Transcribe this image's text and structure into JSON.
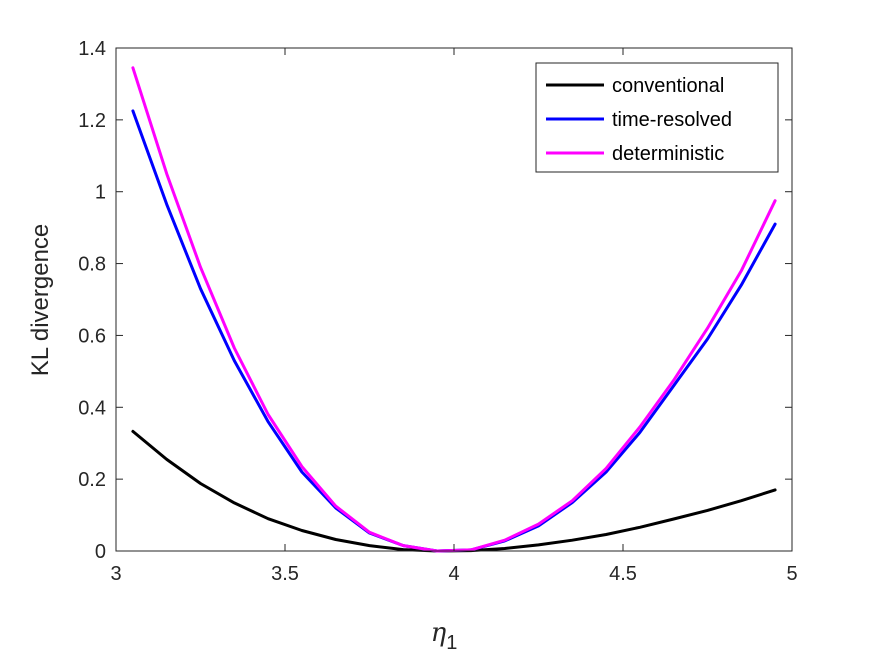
{
  "chart_data": {
    "type": "line",
    "title": "",
    "xlabel": {
      "main": "η",
      "subscript": "1"
    },
    "ylabel": "KL divergence",
    "xlim": [
      3,
      5
    ],
    "ylim": [
      0,
      1.4
    ],
    "xticks": [
      "3",
      "3.5",
      "4",
      "4.5",
      "5"
    ],
    "yticks": [
      "0",
      "0.2",
      "0.4",
      "0.6",
      "0.8",
      "1",
      "1.2",
      "1.4"
    ],
    "grid": false,
    "legend_position": "top-right",
    "series": [
      {
        "name": "conventional",
        "color": "#000000",
        "x": [
          3.05,
          3.15,
          3.25,
          3.35,
          3.45,
          3.55,
          3.65,
          3.75,
          3.85,
          3.95,
          4.05,
          4.15,
          4.25,
          4.35,
          4.45,
          4.55,
          4.65,
          4.75,
          4.85,
          4.95
        ],
        "y": [
          0.333,
          0.255,
          0.188,
          0.134,
          0.09,
          0.057,
          0.032,
          0.015,
          0.004,
          0.0,
          0.001,
          0.007,
          0.017,
          0.03,
          0.046,
          0.066,
          0.089,
          0.113,
          0.14,
          0.17
        ]
      },
      {
        "name": "time-resolved",
        "color": "#0000ff",
        "x": [
          3.05,
          3.15,
          3.25,
          3.35,
          3.45,
          3.55,
          3.65,
          3.75,
          3.85,
          3.95,
          4.05,
          4.15,
          4.25,
          4.35,
          4.45,
          4.55,
          4.65,
          4.75,
          4.85,
          4.95
        ],
        "y": [
          1.225,
          0.965,
          0.73,
          0.53,
          0.36,
          0.22,
          0.12,
          0.05,
          0.015,
          0.0,
          0.003,
          0.028,
          0.07,
          0.135,
          0.22,
          0.33,
          0.46,
          0.59,
          0.74,
          0.91
        ]
      },
      {
        "name": "deterministic",
        "color": "#ff00ff",
        "x": [
          3.05,
          3.15,
          3.25,
          3.35,
          3.45,
          3.55,
          3.65,
          3.75,
          3.85,
          3.95,
          4.05,
          4.15,
          4.25,
          4.35,
          4.45,
          4.55,
          4.65,
          4.75,
          4.85,
          4.95
        ],
        "y": [
          1.345,
          1.05,
          0.79,
          0.565,
          0.38,
          0.235,
          0.125,
          0.052,
          0.015,
          0.0,
          0.003,
          0.03,
          0.075,
          0.14,
          0.23,
          0.345,
          0.475,
          0.62,
          0.78,
          0.975
        ]
      }
    ]
  }
}
